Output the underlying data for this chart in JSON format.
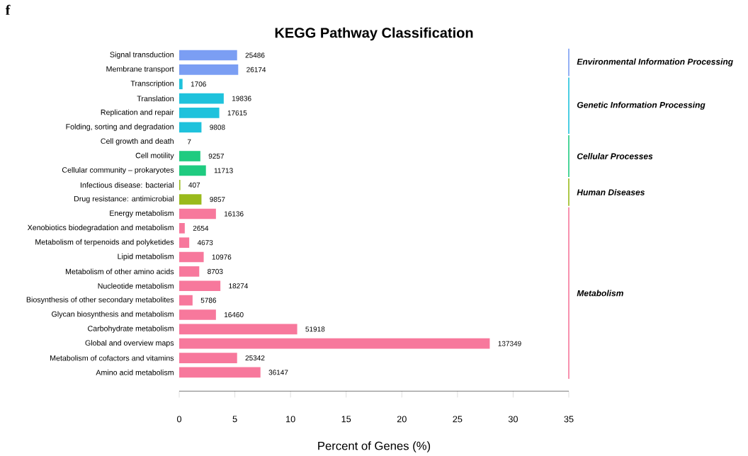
{
  "chart_data": {
    "type": "bar",
    "orientation": "horizontal",
    "title": "KEGG Pathway Classification",
    "xlabel": "Percent of Genes (%)",
    "categories": [
      "Signal transduction",
      "Membrane transport",
      "Transcription",
      "Translation",
      "Replication and repair",
      "Folding, sorting and degradation",
      "Cell growth and death",
      "Cell motility",
      "Cellular community – prokaryotes",
      "Infectious disease: bacterial",
      "Drug resistance: antimicrobial",
      "Energy metabolism",
      "Xenobiotics biodegradation and metabolism",
      "Metabolism of terpenoids and polyketides",
      "Lipid metabolism",
      "Metabolism of other amino acids",
      "Nucleotide metabolism",
      "Biosynthesis of other secondary metabolites",
      "Glycan biosynthesis and metabolism",
      "Carbohydrate metabolism",
      "Global and overview maps",
      "Metabolism of cofactors and vitamins",
      "Amino acid metabolism"
    ],
    "values": [
      5.2,
      5.3,
      0.3,
      4.0,
      3.6,
      2.0,
      0.0,
      1.9,
      2.4,
      0.1,
      2.0,
      3.3,
      0.5,
      0.9,
      2.2,
      1.8,
      3.7,
      1.2,
      3.3,
      10.6,
      27.9,
      5.2,
      7.3
    ],
    "colors": [
      "#7b9ef3",
      "#7b9ef3",
      "#1fc2dc",
      "#1fc2dc",
      "#1fc2dc",
      "#1fc2dc",
      "#1fcb80",
      "#1fcb80",
      "#1fcb80",
      "#9aba1c",
      "#9aba1c",
      "#f7789c",
      "#f7789c",
      "#f7789c",
      "#f7789c",
      "#f7789c",
      "#f7789c",
      "#f7789c",
      "#f7789c",
      "#f7789c",
      "#f7789c",
      "#f7789c",
      "#f7789c"
    ],
    "annotations": [
      "f",
      "Environmental Information Processing",
      "Genetic Information Processing",
      "Cellular Processes",
      "Human Diseases",
      "Metabolism",
      {
        "text": "25486",
        "x": 5.2,
        "y": "Signal transduction"
      },
      {
        "text": "26174",
        "x": 5.3,
        "y": "Membrane transport"
      },
      {
        "text": "1706",
        "x": 0.3,
        "y": "Transcription"
      },
      {
        "text": "19836",
        "x": 4.0,
        "y": "Translation"
      },
      {
        "text": "17615",
        "x": 3.6,
        "y": "Replication and repair"
      },
      {
        "text": "9808",
        "x": 2.0,
        "y": "Folding, sorting and degradation"
      },
      {
        "text": "7",
        "x": 0.0,
        "y": "Cell growth and death"
      },
      {
        "text": "9257",
        "x": 1.9,
        "y": "Cell motility"
      },
      {
        "text": "11713",
        "x": 2.4,
        "y": "Cellular community – prokaryotes"
      },
      {
        "text": "407",
        "x": 0.1,
        "y": "Infectious disease: bacterial"
      },
      {
        "text": "9857",
        "x": 2.0,
        "y": "Drug resistance: antimicrobial"
      },
      {
        "text": "16136",
        "x": 3.3,
        "y": "Energy metabolism"
      },
      {
        "text": "2654",
        "x": 0.5,
        "y": "Xenobiotics biodegradation and metabolism"
      },
      {
        "text": "4673",
        "x": 0.9,
        "y": "Metabolism of terpenoids and polyketides"
      },
      {
        "text": "10976",
        "x": 2.2,
        "y": "Lipid metabolism"
      },
      {
        "text": "8703",
        "x": 1.8,
        "y": "Metabolism of other amino acids"
      },
      {
        "text": "18274",
        "x": 3.7,
        "y": "Nucleotide metabolism"
      },
      {
        "text": "5786",
        "x": 1.2,
        "y": "Biosynthesis of other secondary metabolites"
      },
      {
        "text": "16460",
        "x": 3.3,
        "y": "Glycan biosynthesis and metabolism"
      },
      {
        "text": "51918",
        "x": 10.6,
        "y": "Carbohydrate metabolism"
      },
      {
        "text": "137349",
        "x": 27.9,
        "y": "Global and overview maps"
      },
      {
        "text": "25342",
        "x": 5.2,
        "y": "Metabolism of cofactors and vitamins"
      },
      {
        "text": "36147",
        "x": 7.3,
        "y": "Amino acid metabolism"
      }
    ],
    "xlim": [
      0,
      35
    ],
    "xticks": [
      0,
      5,
      10,
      15,
      20,
      25,
      30,
      35
    ]
  }
}
